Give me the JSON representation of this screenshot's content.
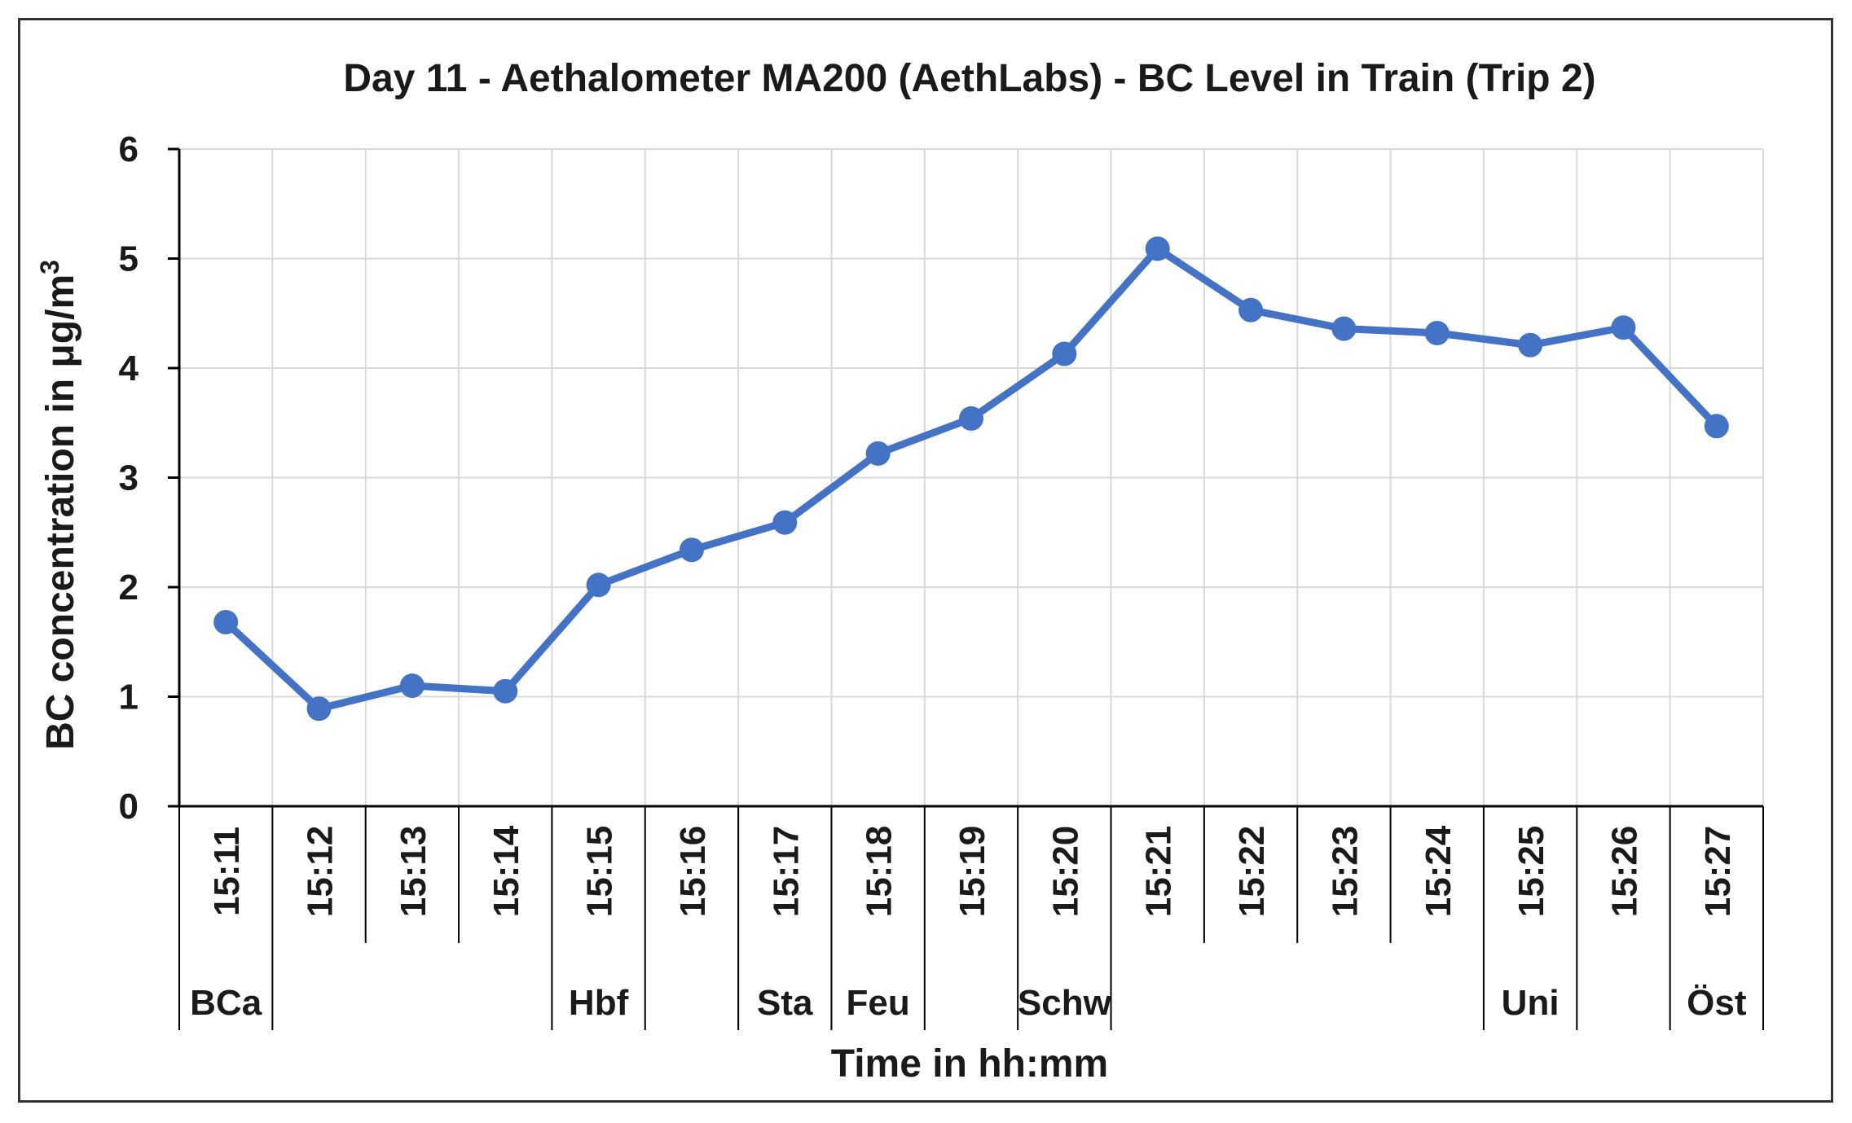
{
  "chart_data": {
    "type": "line",
    "title": "Day 11 - Aethalometer MA200 (AethLabs) - BC Level in Train (Trip 2)",
    "xlabel": "Time in hh:mm",
    "ylabel": "BC concentration in μg/m",
    "ylabel_superscript": "3",
    "ylim": [
      0,
      6
    ],
    "yticks": [
      "0",
      "1",
      "2",
      "3",
      "4",
      "5",
      "6"
    ],
    "grid": true,
    "legend": "none",
    "categories": [
      "15:11",
      "15:12",
      "15:13",
      "15:14",
      "15:15",
      "15:16",
      "15:17",
      "15:18",
      "15:19",
      "15:20",
      "15:21",
      "15:22",
      "15:23",
      "15:24",
      "15:25",
      "15:26",
      "15:27"
    ],
    "stations": [
      {
        "label": "BCa",
        "from": 0,
        "to": 0
      },
      {
        "label": "Hbf",
        "from": 4,
        "to": 4
      },
      {
        "label": "Sta",
        "from": 6,
        "to": 6
      },
      {
        "label": "Feu",
        "from": 7,
        "to": 7
      },
      {
        "label": "Schw",
        "from": 9,
        "to": 9
      },
      {
        "label": "Uni",
        "from": 14,
        "to": 14
      },
      {
        "label": "Öst",
        "from": 16,
        "to": 16
      }
    ],
    "station_dividers": [
      0,
      1,
      4,
      5,
      6,
      7,
      8,
      9,
      10,
      14,
      15,
      16,
      17
    ],
    "series": [
      {
        "values": [
          1.68,
          0.89,
          1.1,
          1.05,
          2.02,
          2.34,
          2.59,
          3.22,
          3.54,
          4.13,
          5.09,
          4.53,
          4.36,
          4.32,
          4.21,
          4.37,
          3.47
        ],
        "color": "#4472c4"
      }
    ]
  }
}
